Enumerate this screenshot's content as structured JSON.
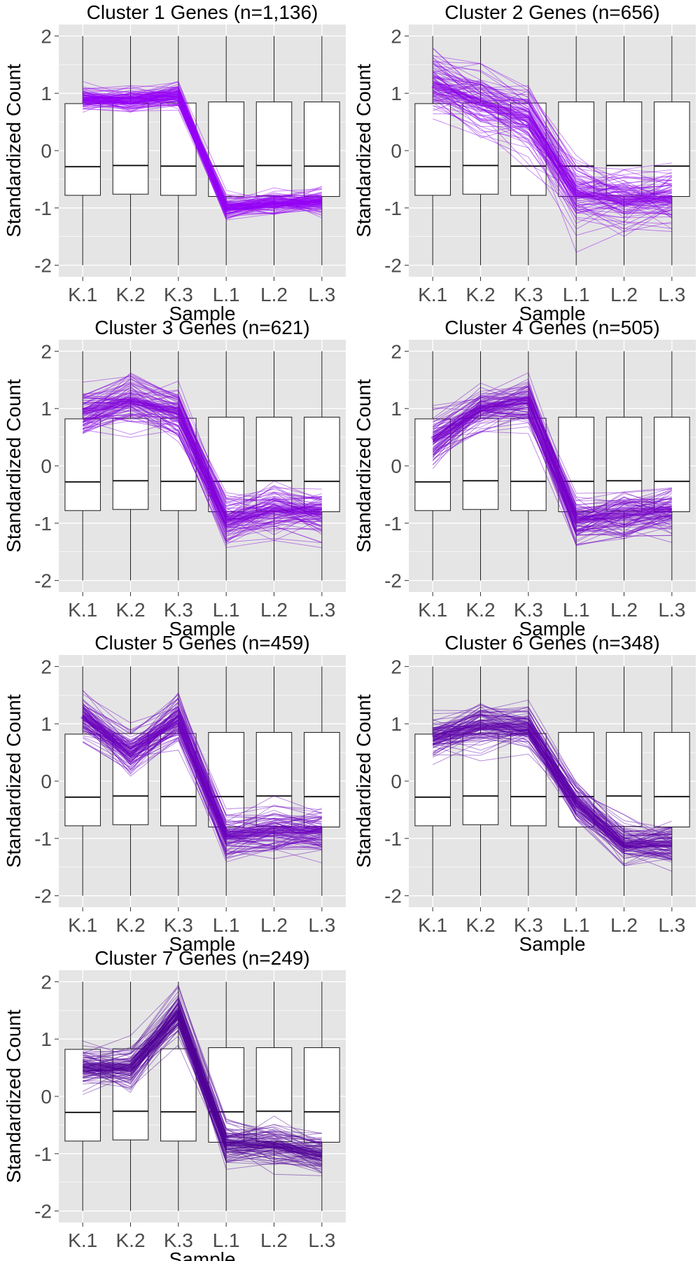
{
  "chart_data": [
    {
      "type": "line",
      "title": "Cluster 1 Genes (n=1,136)",
      "xlabel": "Sample",
      "ylabel": "Standardized Count",
      "categories": [
        "K.1",
        "K.2",
        "K.3",
        "L.1",
        "L.2",
        "L.3"
      ],
      "yticks": [
        -2,
        -1,
        0,
        1,
        2
      ],
      "ylim": [
        -2.2,
        2.2
      ],
      "line_color": "#9400f5",
      "mean_profile": [
        0.9,
        0.87,
        0.95,
        -1.0,
        -0.92,
        -0.9
      ],
      "spread": 0.15,
      "boxes": [
        {
          "q1": -0.78,
          "median": -0.28,
          "q3": 0.82,
          "whisker_low": -2.0,
          "whisker_high": 2.0
        },
        {
          "q1": -0.76,
          "median": -0.26,
          "q3": 0.83,
          "whisker_low": -2.0,
          "whisker_high": 2.0
        },
        {
          "q1": -0.78,
          "median": -0.27,
          "q3": 0.83,
          "whisker_low": -2.0,
          "whisker_high": 2.0
        },
        {
          "q1": -0.8,
          "median": -0.27,
          "q3": 0.85,
          "whisker_low": -2.0,
          "whisker_high": 2.0
        },
        {
          "q1": -0.79,
          "median": -0.26,
          "q3": 0.85,
          "whisker_low": -2.0,
          "whisker_high": 2.0
        },
        {
          "q1": -0.8,
          "median": -0.27,
          "q3": 0.85,
          "whisker_low": -2.0,
          "whisker_high": 2.0
        }
      ]
    },
    {
      "type": "line",
      "title": "Cluster 2 Genes (n=656)",
      "xlabel": "Sample",
      "ylabel": "Standardized Count",
      "categories": [
        "K.1",
        "K.2",
        "K.3",
        "L.1",
        "L.2",
        "L.3"
      ],
      "yticks": [
        -2,
        -1,
        0,
        1,
        2
      ],
      "ylim": [
        -2.2,
        2.2
      ],
      "line_color": "#8a00e6",
      "mean_profile": [
        1.15,
        0.85,
        0.55,
        -0.75,
        -0.85,
        -0.85
      ],
      "spread": 0.35,
      "boxes": [
        {
          "q1": -0.78,
          "median": -0.28,
          "q3": 0.82,
          "whisker_low": -2.0,
          "whisker_high": 2.0
        },
        {
          "q1": -0.76,
          "median": -0.26,
          "q3": 0.83,
          "whisker_low": -2.0,
          "whisker_high": 2.0
        },
        {
          "q1": -0.78,
          "median": -0.27,
          "q3": 0.83,
          "whisker_low": -2.0,
          "whisker_high": 2.0
        },
        {
          "q1": -0.8,
          "median": -0.27,
          "q3": 0.85,
          "whisker_low": -2.0,
          "whisker_high": 2.0
        },
        {
          "q1": -0.79,
          "median": -0.26,
          "q3": 0.85,
          "whisker_low": -2.0,
          "whisker_high": 2.0
        },
        {
          "q1": -0.8,
          "median": -0.27,
          "q3": 0.85,
          "whisker_low": -2.0,
          "whisker_high": 2.0
        }
      ]
    },
    {
      "type": "line",
      "title": "Cluster 3 Genes (n=621)",
      "xlabel": "Sample",
      "ylabel": "Standardized Count",
      "categories": [
        "K.1",
        "K.2",
        "K.3",
        "L.1",
        "L.2",
        "L.3"
      ],
      "yticks": [
        -2,
        -1,
        0,
        1,
        2
      ],
      "ylim": [
        -2.2,
        2.2
      ],
      "line_color": "#8000d9",
      "mean_profile": [
        0.95,
        1.15,
        0.95,
        -0.95,
        -0.75,
        -0.8
      ],
      "spread": 0.3,
      "boxes": [
        {
          "q1": -0.78,
          "median": -0.28,
          "q3": 0.82,
          "whisker_low": -2.0,
          "whisker_high": 2.0
        },
        {
          "q1": -0.76,
          "median": -0.26,
          "q3": 0.83,
          "whisker_low": -2.0,
          "whisker_high": 2.0
        },
        {
          "q1": -0.78,
          "median": -0.27,
          "q3": 0.83,
          "whisker_low": -2.0,
          "whisker_high": 2.0
        },
        {
          "q1": -0.8,
          "median": -0.27,
          "q3": 0.85,
          "whisker_low": -2.0,
          "whisker_high": 2.0
        },
        {
          "q1": -0.79,
          "median": -0.26,
          "q3": 0.85,
          "whisker_low": -2.0,
          "whisker_high": 2.0
        },
        {
          "q1": -0.8,
          "median": -0.27,
          "q3": 0.85,
          "whisker_low": -2.0,
          "whisker_high": 2.0
        }
      ]
    },
    {
      "type": "line",
      "title": "Cluster 4 Genes (n=505)",
      "xlabel": "Sample",
      "ylabel": "Standardized Count",
      "categories": [
        "K.1",
        "K.2",
        "K.3",
        "L.1",
        "L.2",
        "L.3"
      ],
      "yticks": [
        -2,
        -1,
        0,
        1,
        2
      ],
      "ylim": [
        -2.2,
        2.2
      ],
      "line_color": "#7400c8",
      "mean_profile": [
        0.45,
        1.0,
        1.15,
        -0.95,
        -0.85,
        -0.75
      ],
      "spread": 0.3,
      "boxes": [
        {
          "q1": -0.78,
          "median": -0.28,
          "q3": 0.82,
          "whisker_low": -2.0,
          "whisker_high": 2.0
        },
        {
          "q1": -0.76,
          "median": -0.26,
          "q3": 0.83,
          "whisker_low": -2.0,
          "whisker_high": 2.0
        },
        {
          "q1": -0.78,
          "median": -0.27,
          "q3": 0.83,
          "whisker_low": -2.0,
          "whisker_high": 2.0
        },
        {
          "q1": -0.8,
          "median": -0.27,
          "q3": 0.85,
          "whisker_low": -2.0,
          "whisker_high": 2.0
        },
        {
          "q1": -0.79,
          "median": -0.26,
          "q3": 0.85,
          "whisker_low": -2.0,
          "whisker_high": 2.0
        },
        {
          "q1": -0.8,
          "median": -0.27,
          "q3": 0.85,
          "whisker_low": -2.0,
          "whisker_high": 2.0
        }
      ]
    },
    {
      "type": "line",
      "title": "Cluster 5 Genes (n=459)",
      "xlabel": "Sample",
      "ylabel": "Standardized Count",
      "categories": [
        "K.1",
        "K.2",
        "K.3",
        "L.1",
        "L.2",
        "L.3"
      ],
      "yticks": [
        -2,
        -1,
        0,
        1,
        2
      ],
      "ylim": [
        -2.2,
        2.2
      ],
      "line_color": "#6a00bd",
      "mean_profile": [
        1.15,
        0.5,
        1.1,
        -0.95,
        -0.85,
        -0.85
      ],
      "spread": 0.25,
      "boxes": [
        {
          "q1": -0.78,
          "median": -0.28,
          "q3": 0.82,
          "whisker_low": -2.0,
          "whisker_high": 2.0
        },
        {
          "q1": -0.76,
          "median": -0.26,
          "q3": 0.83,
          "whisker_low": -2.0,
          "whisker_high": 2.0
        },
        {
          "q1": -0.78,
          "median": -0.27,
          "q3": 0.83,
          "whisker_low": -2.0,
          "whisker_high": 2.0
        },
        {
          "q1": -0.8,
          "median": -0.27,
          "q3": 0.85,
          "whisker_low": -2.0,
          "whisker_high": 2.0
        },
        {
          "q1": -0.79,
          "median": -0.26,
          "q3": 0.85,
          "whisker_low": -2.0,
          "whisker_high": 2.0
        },
        {
          "q1": -0.8,
          "median": -0.27,
          "q3": 0.85,
          "whisker_low": -2.0,
          "whisker_high": 2.0
        }
      ]
    },
    {
      "type": "line",
      "title": "Cluster 6 Genes (n=348)",
      "xlabel": "Sample",
      "ylabel": "Standardized Count",
      "categories": [
        "K.1",
        "K.2",
        "K.3",
        "L.1",
        "L.2",
        "L.3"
      ],
      "yticks": [
        -2,
        -1,
        0,
        1,
        2
      ],
      "ylim": [
        -2.2,
        2.2
      ],
      "line_color": "#5c00a8",
      "mean_profile": [
        0.75,
        0.95,
        0.95,
        -0.4,
        -1.1,
        -1.1
      ],
      "spread": 0.25,
      "boxes": [
        {
          "q1": -0.78,
          "median": -0.28,
          "q3": 0.82,
          "whisker_low": -2.0,
          "whisker_high": 2.0
        },
        {
          "q1": -0.76,
          "median": -0.26,
          "q3": 0.83,
          "whisker_low": -2.0,
          "whisker_high": 2.0
        },
        {
          "q1": -0.78,
          "median": -0.27,
          "q3": 0.83,
          "whisker_low": -2.0,
          "whisker_high": 2.0
        },
        {
          "q1": -0.8,
          "median": -0.27,
          "q3": 0.85,
          "whisker_low": -2.0,
          "whisker_high": 2.0
        },
        {
          "q1": -0.79,
          "median": -0.26,
          "q3": 0.85,
          "whisker_low": -2.0,
          "whisker_high": 2.0
        },
        {
          "q1": -0.8,
          "median": -0.27,
          "q3": 0.85,
          "whisker_low": -2.0,
          "whisker_high": 2.0
        }
      ]
    },
    {
      "type": "line",
      "title": "Cluster 7 Genes (n=249)",
      "xlabel": "Sample",
      "ylabel": "Standardized Count",
      "categories": [
        "K.1",
        "K.2",
        "K.3",
        "L.1",
        "L.2",
        "L.3"
      ],
      "yticks": [
        -2,
        -1,
        0,
        1,
        2
      ],
      "ylim": [
        -2.2,
        2.2
      ],
      "line_color": "#4f0096",
      "mean_profile": [
        0.5,
        0.5,
        1.45,
        -0.8,
        -0.85,
        -1.0
      ],
      "spread": 0.25,
      "boxes": [
        {
          "q1": -0.78,
          "median": -0.28,
          "q3": 0.82,
          "whisker_low": -2.0,
          "whisker_high": 2.0
        },
        {
          "q1": -0.76,
          "median": -0.26,
          "q3": 0.83,
          "whisker_low": -2.0,
          "whisker_high": 2.0
        },
        {
          "q1": -0.78,
          "median": -0.27,
          "q3": 0.83,
          "whisker_low": -2.0,
          "whisker_high": 2.0
        },
        {
          "q1": -0.8,
          "median": -0.27,
          "q3": 0.85,
          "whisker_low": -2.0,
          "whisker_high": 2.0
        },
        {
          "q1": -0.79,
          "median": -0.26,
          "q3": 0.85,
          "whisker_low": -2.0,
          "whisker_high": 2.0
        },
        {
          "q1": -0.8,
          "median": -0.27,
          "q3": 0.85,
          "whisker_low": -2.0,
          "whisker_high": 2.0
        }
      ]
    }
  ],
  "style": {
    "panel_background": "#e5e5e5",
    "grid_color": "#ffffff",
    "box_fill": "#ffffff",
    "box_stroke": "#1a1a1a",
    "tick_text_color": "#4d4d4d"
  }
}
